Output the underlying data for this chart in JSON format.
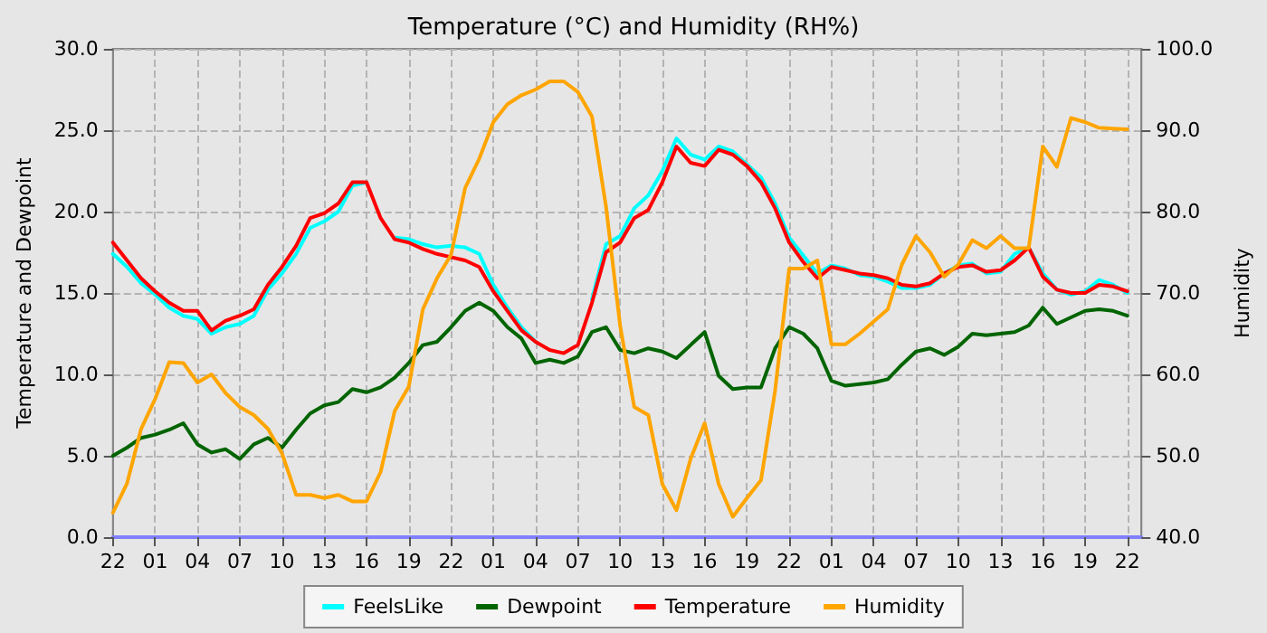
{
  "chart_data": {
    "type": "line",
    "title": "Temperature (°C) and Humidity (RH%)",
    "ylabel": "Temperature and Dewpoint",
    "y2label": "Humidity",
    "categories": [
      "22",
      null,
      null,
      "01",
      null,
      null,
      "04",
      null,
      null,
      "07",
      null,
      null,
      "10",
      null,
      null,
      "13",
      null,
      null,
      "16",
      null,
      null,
      "19",
      null,
      null,
      "22",
      null,
      null,
      "01",
      null,
      null,
      "04",
      null,
      null,
      "07",
      null,
      null,
      "10",
      null,
      null,
      "13",
      null,
      null,
      "16",
      null,
      null,
      "19",
      null,
      null,
      "22",
      null,
      null,
      "01",
      null,
      null,
      "04",
      null,
      null,
      "07",
      null,
      null,
      "10",
      null,
      null,
      "13",
      null,
      null,
      "16",
      null,
      null,
      "19",
      null,
      null,
      "22",
      null
    ],
    "ylim": [
      0,
      30
    ],
    "yticks": [
      {
        "value": 0,
        "label": "0.0"
      },
      {
        "value": 5,
        "label": "5.0"
      },
      {
        "value": 10,
        "label": "10.0"
      },
      {
        "value": 15,
        "label": "15.0"
      },
      {
        "value": 20,
        "label": "20.0"
      },
      {
        "value": 25,
        "label": "25.0"
      },
      {
        "value": 30,
        "label": "30.0"
      }
    ],
    "y2lim": [
      40,
      100
    ],
    "y2ticks": [
      {
        "value": 40,
        "label": "40.0"
      },
      {
        "value": 50,
        "label": "50.0"
      },
      {
        "value": 60,
        "label": "60.0"
      },
      {
        "value": 70,
        "label": "70.0"
      },
      {
        "value": 80,
        "label": "80.0"
      },
      {
        "value": 90,
        "label": "90.0"
      },
      {
        "value": 100,
        "label": "100.0"
      }
    ],
    "grid": true,
    "legend": "bottom",
    "marker": "none",
    "line_style": "solid",
    "series": [
      {
        "name": "FeelsLike",
        "color": "#00ffff",
        "values": [
          17.4,
          16.6,
          15.6,
          14.9,
          14.1,
          13.6,
          13.4,
          12.5,
          12.9,
          13.1,
          13.6,
          15.2,
          16.2,
          17.4,
          19.0,
          19.4,
          20.0,
          21.6,
          21.8,
          null,
          18.4,
          18.3,
          18.0,
          17.8,
          17.9,
          17.8,
          17.4,
          15.5,
          14.1,
          12.9,
          12.0,
          null,
          null,
          null,
          14.6,
          18.0,
          18.5,
          20.2,
          21.0,
          22.5,
          24.5,
          23.5,
          23.2,
          24.0,
          23.7,
          22.9,
          22.1,
          20.5,
          18.4,
          17.3,
          16.2,
          16.7,
          16.5,
          16.1,
          16.0,
          15.7,
          15.3,
          15.3,
          15.5,
          16.2,
          16.7,
          16.8,
          16.2,
          16.3,
          17.4,
          17.8,
          16.2,
          15.2,
          14.9,
          15.1,
          15.8,
          15.5,
          15.0,
          null
        ]
      },
      {
        "name": "Dewpoint",
        "color": "#006400",
        "values": [
          5.0,
          5.5,
          6.1,
          6.3,
          6.6,
          7.0,
          5.7,
          5.2,
          5.4,
          4.8,
          5.7,
          6.1,
          5.5,
          6.6,
          7.6,
          8.1,
          8.3,
          9.1,
          8.9,
          9.2,
          9.8,
          10.7,
          11.8,
          12.0,
          12.9,
          13.9,
          14.4,
          13.9,
          12.9,
          12.2,
          10.7,
          10.9,
          10.7,
          11.1,
          12.6,
          12.9,
          11.5,
          11.3,
          11.6,
          11.4,
          11.0,
          11.8,
          12.6,
          9.9,
          9.1,
          9.2,
          9.2,
          11.6,
          12.9,
          12.5,
          11.6,
          9.6,
          9.3,
          9.4,
          9.5,
          9.7,
          10.6,
          11.4,
          11.6,
          11.2,
          11.7,
          12.5,
          12.4,
          12.5,
          12.6,
          13.0,
          14.1,
          13.1,
          13.5,
          13.9,
          14.0,
          13.9,
          13.6,
          null
        ]
      },
      {
        "name": "Temperature",
        "color": "#ff0000",
        "values": [
          18.1,
          17.0,
          15.9,
          15.1,
          14.4,
          13.9,
          13.9,
          12.7,
          13.3,
          13.6,
          14.0,
          15.5,
          16.6,
          17.9,
          19.6,
          19.9,
          20.5,
          21.8,
          21.8,
          19.6,
          18.3,
          18.1,
          17.7,
          17.4,
          17.2,
          17.0,
          16.6,
          15.1,
          13.9,
          12.7,
          12.0,
          11.5,
          11.3,
          11.8,
          14.4,
          17.5,
          18.1,
          19.6,
          20.1,
          21.8,
          24.0,
          23.0,
          22.8,
          23.8,
          23.5,
          22.8,
          21.8,
          20.2,
          18.1,
          16.9,
          15.9,
          16.6,
          16.4,
          16.2,
          16.1,
          15.9,
          15.5,
          15.4,
          15.6,
          16.2,
          16.6,
          16.7,
          16.3,
          16.4,
          17.0,
          17.8,
          16.0,
          15.2,
          15.0,
          15.0,
          15.5,
          15.4,
          15.1,
          null
        ]
      },
      {
        "name": "Humidity",
        "color": "#ffa500",
        "axis": "y2",
        "values": [
          43,
          46.6,
          53.3,
          57,
          61.5,
          61.4,
          59,
          60,
          57.7,
          56,
          55,
          53.3,
          50.3,
          45.2,
          45.2,
          44.8,
          45.2,
          44.4,
          44.4,
          48,
          55.5,
          58.5,
          68,
          71.8,
          74.7,
          82.9,
          86.5,
          91,
          93.2,
          94.3,
          95,
          96,
          96,
          94.7,
          91.7,
          80.6,
          66,
          56,
          55,
          46.5,
          43.3,
          49.6,
          54,
          46.5,
          42.5,
          44.8,
          47,
          58,
          73,
          73,
          74,
          63.7,
          63.7,
          65,
          66.5,
          68,
          73.5,
          77,
          75,
          72,
          73.5,
          76.5,
          75.5,
          77,
          75.5,
          75.5,
          88,
          85.5,
          91.5,
          91,
          90.3,
          90.2,
          90.1,
          null
        ]
      }
    ]
  }
}
